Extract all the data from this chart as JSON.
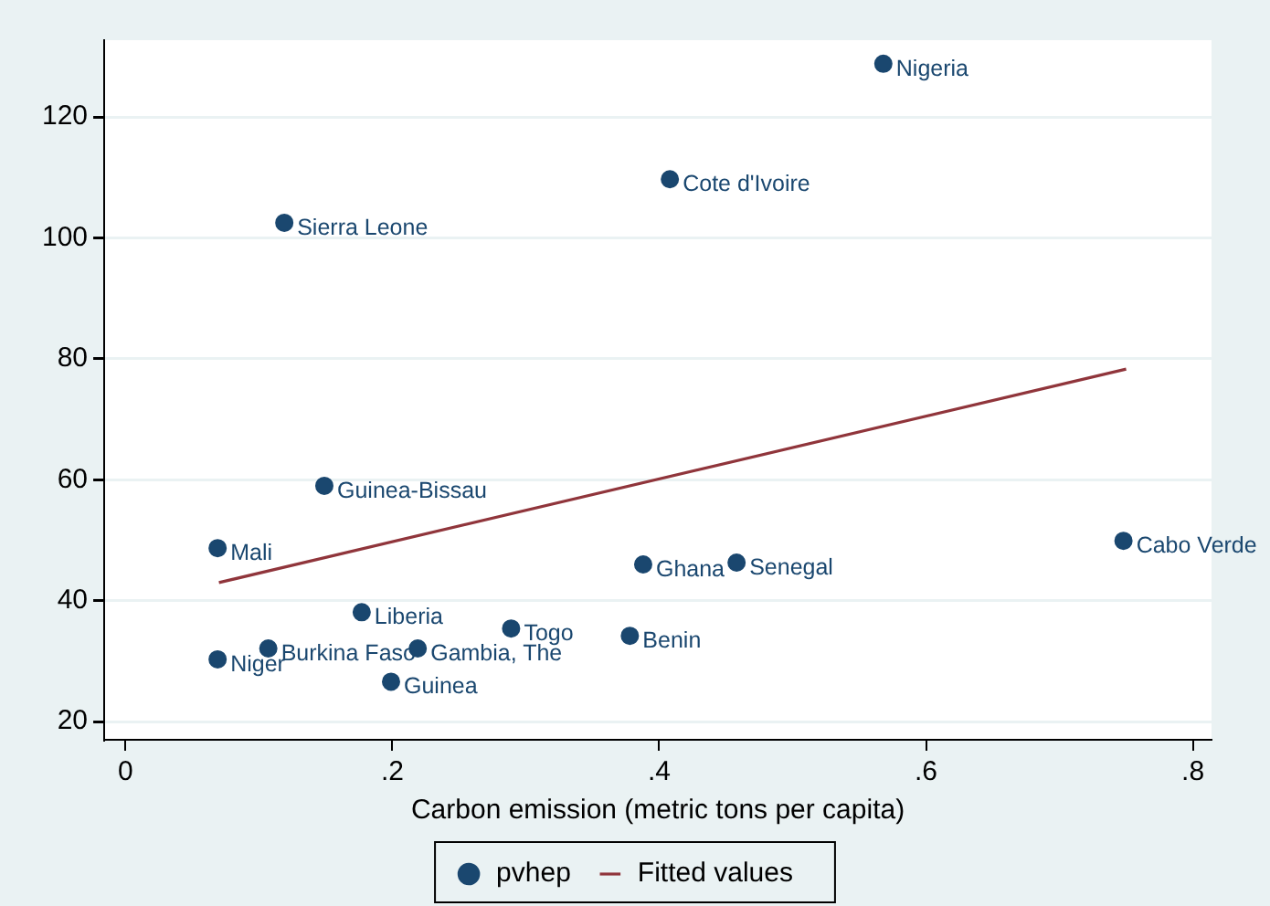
{
  "chart_data": {
    "type": "scatter",
    "xlabel": "Carbon emission (metric tons per capita)",
    "xlim": [
      -0.016,
      0.814
    ],
    "xticks": [
      {
        "value": 0,
        "label": "0"
      },
      {
        "value": 0.2,
        "label": ".2"
      },
      {
        "value": 0.4,
        "label": ".4"
      },
      {
        "value": 0.6,
        "label": ".6"
      },
      {
        "value": 0.8,
        "label": ".8"
      }
    ],
    "ylim": [
      17,
      132.7
    ],
    "yticks": [
      20,
      40,
      60,
      80,
      100,
      120
    ],
    "grid": "y",
    "legend": "bottom",
    "series": [
      {
        "name": "pvhep",
        "marker": "circle",
        "color": "#1a476f",
        "x": [
          0.568,
          0.408,
          0.119,
          0.149,
          0.069,
          0.388,
          0.458,
          0.748,
          0.177,
          0.289,
          0.378,
          0.107,
          0.219,
          0.069,
          0.199
        ],
        "values": [
          128.8,
          109.7,
          102.5,
          59.0,
          48.7,
          46.0,
          46.3,
          49.9,
          38.1,
          35.4,
          34.2,
          32.1,
          32.1,
          30.3,
          26.6
        ]
      },
      {
        "name": "Fitted values",
        "type": "line",
        "color": "#90353b",
        "x": [
          0.07,
          0.75
        ],
        "values": [
          43.0,
          78.3
        ]
      }
    ],
    "annotations": [
      {
        "text": "Nigeria",
        "x": 0.568,
        "y": 128.8
      },
      {
        "text": "Cote d'Ivoire",
        "x": 0.408,
        "y": 109.7
      },
      {
        "text": "Sierra Leone",
        "x": 0.119,
        "y": 102.5
      },
      {
        "text": "Guinea-Bissau",
        "x": 0.149,
        "y": 59.0
      },
      {
        "text": "Mali",
        "x": 0.069,
        "y": 48.7
      },
      {
        "text": "Ghana",
        "x": 0.388,
        "y": 46.0
      },
      {
        "text": "Senegal",
        "x": 0.458,
        "y": 46.3
      },
      {
        "text": "Cabo Verde",
        "x": 0.748,
        "y": 49.9
      },
      {
        "text": "Liberia",
        "x": 0.177,
        "y": 38.1
      },
      {
        "text": "Togo",
        "x": 0.289,
        "y": 35.4
      },
      {
        "text": "Benin",
        "x": 0.378,
        "y": 34.2
      },
      {
        "text": "Burkina Faso",
        "x": 0.107,
        "y": 32.1
      },
      {
        "text": "Gambia, The",
        "x": 0.219,
        "y": 32.1
      },
      {
        "text": "Niger",
        "x": 0.069,
        "y": 30.3
      },
      {
        "text": "Guinea",
        "x": 0.199,
        "y": 26.6
      }
    ]
  }
}
